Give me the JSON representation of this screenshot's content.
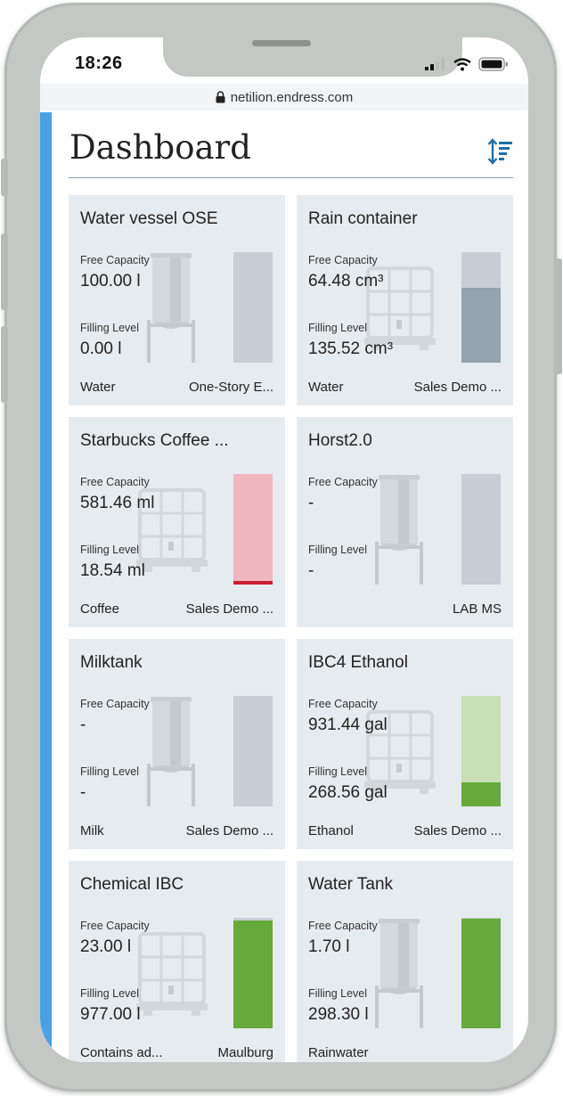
{
  "status": {
    "time": "18:26"
  },
  "url": "netilion.endress.com",
  "title": "Dashboard",
  "cards": [
    {
      "name": "Water vessel OSE",
      "free_label": "Free Capacity",
      "free_value": "100.00 l",
      "fill_label": "Filling Level",
      "fill_value": "0.00 l",
      "medium": "Water",
      "location": "One-Story E...",
      "vessel": "tank",
      "level": 0.0,
      "fill_color": "#94a3ae"
    },
    {
      "name": "Rain container",
      "free_label": "Free Capacity",
      "free_value": "64.48 cm³",
      "fill_label": "Filling Level",
      "fill_value": "135.52 cm³",
      "medium": "Water",
      "location": "Sales Demo ...",
      "vessel": "ibc",
      "level": 0.68,
      "fill_color": "#94a3ae"
    },
    {
      "name": "Starbucks Coffee ...",
      "free_label": "Free Capacity",
      "free_value": "581.46 ml",
      "fill_label": "Filling Level",
      "fill_value": "18.54 ml",
      "medium": "Coffee",
      "location": "Sales Demo ...",
      "vessel": "ibc",
      "level": 0.03,
      "fill_color": "#c8202f",
      "gauge_bg": "#f0b6c0"
    },
    {
      "name": "Horst2.0",
      "free_label": "Free Capacity",
      "free_value": "-",
      "fill_label": "Filling Level",
      "fill_value": "-",
      "medium": "",
      "location": "LAB MS",
      "vessel": "tank",
      "level": 0.0,
      "fill_color": "#94a3ae"
    },
    {
      "name": "Milktank",
      "free_label": "Free Capacity",
      "free_value": "-",
      "fill_label": "Filling Level",
      "fill_value": "-",
      "medium": "Milk",
      "location": "Sales Demo ...",
      "vessel": "tank",
      "level": 0.0,
      "fill_color": "#94a3ae"
    },
    {
      "name": "IBC4 Ethanol",
      "free_label": "Free Capacity",
      "free_value": "931.44 gal",
      "fill_label": "Filling Level",
      "fill_value": "268.56 gal",
      "medium": "Ethanol",
      "location": "Sales Demo ...",
      "vessel": "ibc",
      "level": 0.22,
      "fill_color": "#66aa3c",
      "gauge_bg": "#c9dfb4"
    },
    {
      "name": "Chemical IBC",
      "free_label": "Free Capacity",
      "free_value": "23.00 l",
      "fill_label": "Filling Level",
      "fill_value": "977.00 l",
      "medium": "Contains ad...",
      "location": "Maulburg",
      "vessel": "ibc",
      "level": 0.977,
      "fill_color": "#66aa3c"
    },
    {
      "name": "Water Tank",
      "free_label": "Free Capacity",
      "free_value": "1.70 l",
      "fill_label": "Filling Level",
      "fill_value": "298.30 l",
      "medium": "Rainwater",
      "location": "",
      "vessel": "tank",
      "level": 0.994,
      "fill_color": "#66aa3c"
    }
  ]
}
